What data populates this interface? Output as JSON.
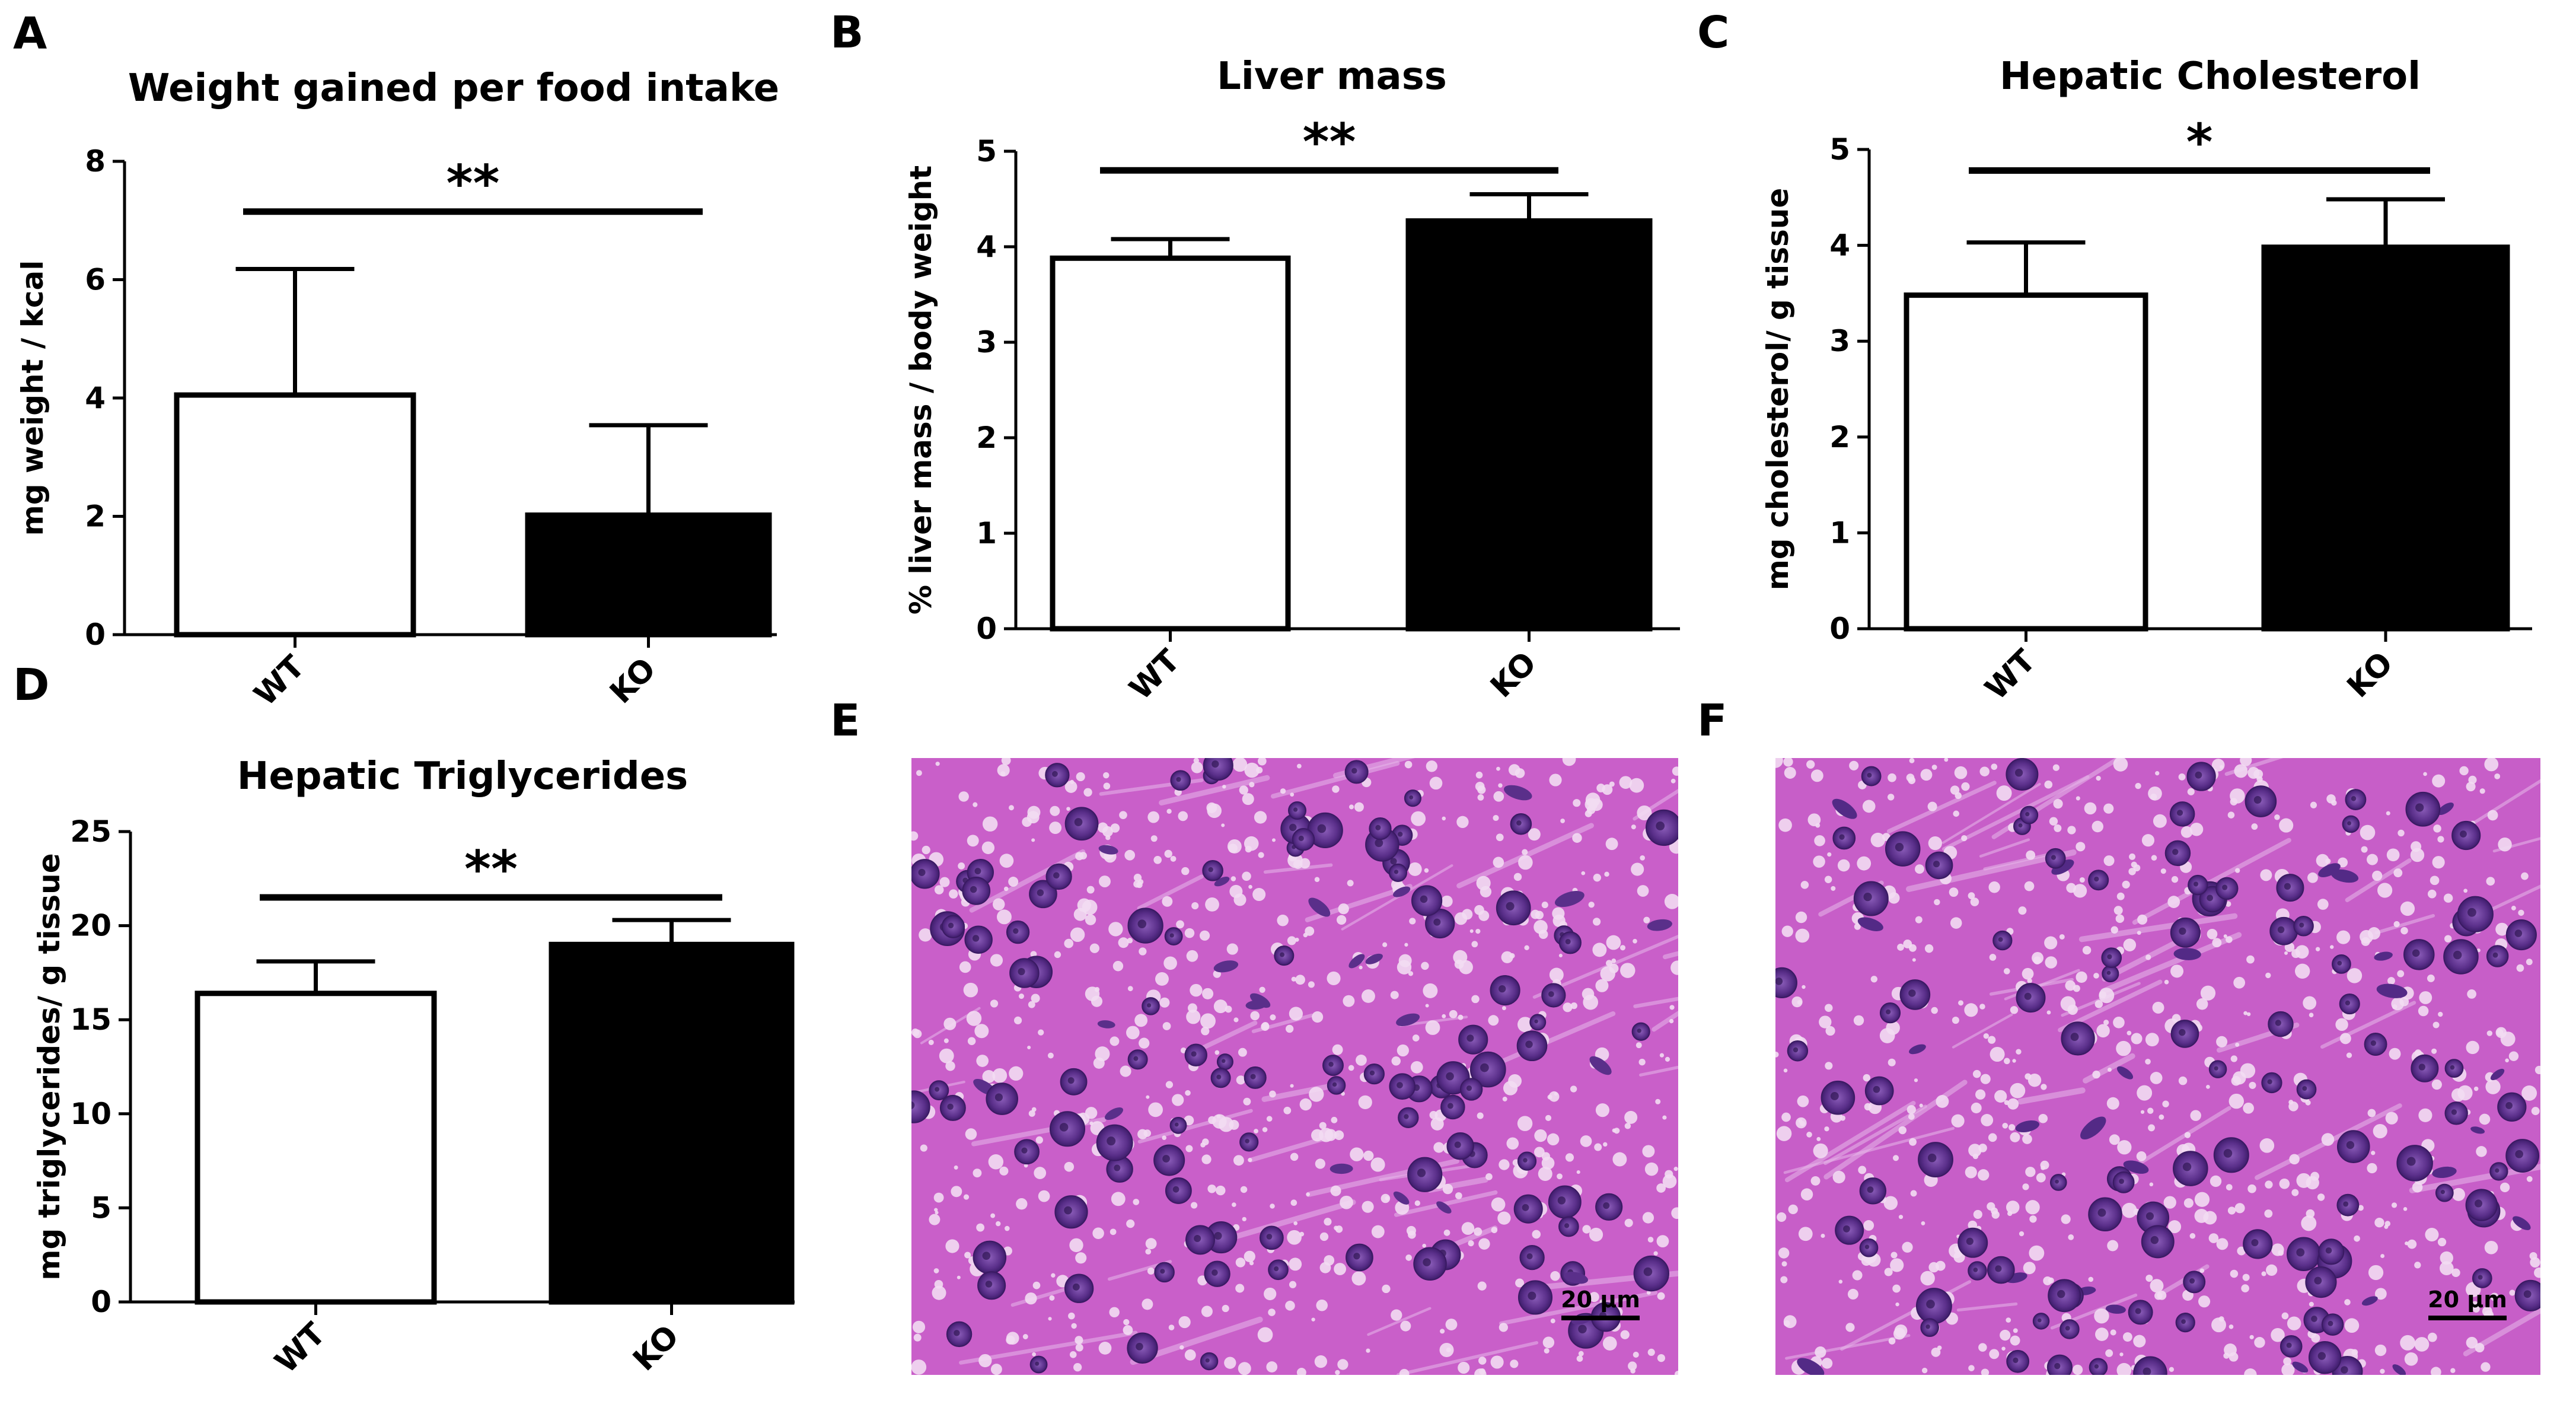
{
  "figure": {
    "panels": [
      {
        "letter": "A"
      },
      {
        "letter": "B"
      },
      {
        "letter": "C"
      },
      {
        "letter": "D"
      },
      {
        "letter": "E"
      },
      {
        "letter": "F"
      }
    ]
  },
  "chart_data": [
    {
      "panel": "A",
      "type": "bar",
      "title": "Weight gained per food intake",
      "ylabel": "mg weight / kcal",
      "xlabel": "",
      "categories": [
        "WT",
        "KO"
      ],
      "values": [
        4.05,
        2.02
      ],
      "error_plus": [
        2.13,
        1.52
      ],
      "bar_fill": [
        "#ffffff",
        "#000000"
      ],
      "ylim": [
        0,
        8
      ],
      "yticks": [
        0,
        2,
        4,
        6,
        8
      ],
      "significance": {
        "label": "**",
        "y": 7.15
      },
      "grid": false
    },
    {
      "panel": "B",
      "type": "bar",
      "title": "Liver mass",
      "ylabel": "% liver mass / body weight",
      "xlabel": "",
      "categories": [
        "WT",
        "KO"
      ],
      "values": [
        3.88,
        4.27
      ],
      "error_plus": [
        0.2,
        0.28
      ],
      "bar_fill": [
        "#ffffff",
        "#000000"
      ],
      "ylim": [
        0,
        5
      ],
      "yticks": [
        0,
        1,
        2,
        3,
        4,
        5
      ],
      "significance": {
        "label": "**",
        "y": 4.8
      },
      "grid": false
    },
    {
      "panel": "C",
      "type": "bar",
      "title": "Hepatic Cholesterol",
      "ylabel": "mg cholesterol/ g tissue",
      "xlabel": "",
      "categories": [
        "WT",
        "KO"
      ],
      "values": [
        3.48,
        3.98
      ],
      "error_plus": [
        0.55,
        0.5
      ],
      "bar_fill": [
        "#ffffff",
        "#000000"
      ],
      "ylim": [
        0,
        5
      ],
      "yticks": [
        0,
        1,
        2,
        3,
        4,
        5
      ],
      "significance": {
        "label": "*",
        "y": 4.78
      },
      "grid": false
    },
    {
      "panel": "D",
      "type": "bar",
      "title": "Hepatic Triglycerides",
      "ylabel": "mg triglycerides/ g tissue",
      "xlabel": "",
      "categories": [
        "WT",
        "KO"
      ],
      "values": [
        16.4,
        19.0
      ],
      "error_plus": [
        1.7,
        1.3
      ],
      "bar_fill": [
        "#ffffff",
        "#000000"
      ],
      "ylim": [
        0,
        25
      ],
      "yticks": [
        0,
        5,
        10,
        15,
        20,
        25
      ],
      "significance": {
        "label": "**",
        "y": 21.5
      },
      "grid": false
    }
  ],
  "micrographs": [
    {
      "panel": "E",
      "scale_bar_label": "20 µm",
      "stain": "H&E liver section",
      "colors": {
        "background": "#c95fc9",
        "nucleus": "#5a2f8a",
        "droplet": "#f2dcf2"
      }
    },
    {
      "panel": "F",
      "scale_bar_label": "20 µm",
      "stain": "H&E liver section",
      "colors": {
        "background": "#c75ec8",
        "nucleus": "#532a86",
        "droplet": "#f2dcf2"
      }
    }
  ]
}
